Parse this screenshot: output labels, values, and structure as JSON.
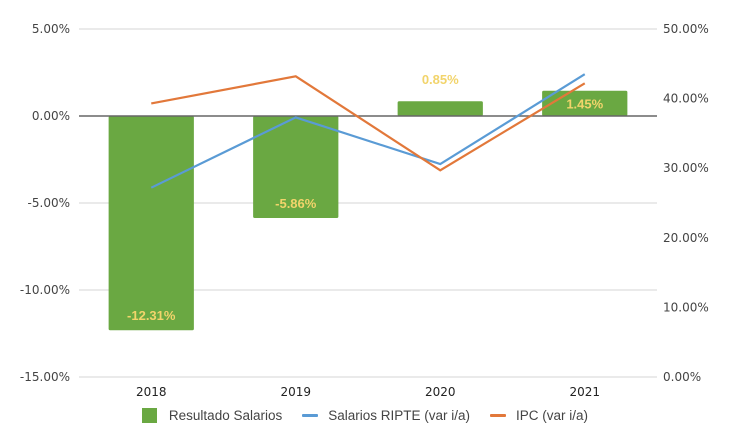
{
  "chart_data": {
    "type": "bar",
    "title": "",
    "xlabel": "",
    "categories": [
      "2018",
      "2019",
      "2020",
      "2021"
    ],
    "left_axis": {
      "ylim": [
        -15,
        5
      ],
      "ticks": [
        5,
        0,
        -5,
        -10,
        -15
      ],
      "tick_labels": [
        "5.00%",
        "0.00%",
        "-5.00%",
        "-10.00%",
        "-15.00%"
      ]
    },
    "right_axis": {
      "ylim": [
        0,
        50
      ],
      "ticks": [
        50,
        40,
        30,
        20,
        10,
        0
      ],
      "tick_labels": [
        "50.00%",
        "40.00%",
        "30.00%",
        "20.00%",
        "10.00%",
        "0.00%"
      ]
    },
    "series": [
      {
        "name": "Resultado Salarios",
        "kind": "bar",
        "axis": "left",
        "color": "#6aa842",
        "label_color": "#f2d46b",
        "values": [
          -12.31,
          -5.86,
          0.85,
          1.45
        ],
        "data_labels": [
          "-12.31%",
          "-5.86%",
          "0.85%",
          "1.45%"
        ]
      },
      {
        "name": "Salarios RIPTE (var i/a)",
        "kind": "line",
        "axis": "right",
        "color": "#5a9bd5",
        "values": [
          27.2,
          37.3,
          30.6,
          43.5
        ]
      },
      {
        "name": "IPC (var i/a)",
        "kind": "line",
        "axis": "right",
        "color": "#e2783a",
        "values": [
          39.3,
          43.2,
          29.7,
          42.2
        ]
      }
    ],
    "grid": true,
    "legend_position": "bottom"
  },
  "legend": {
    "items": [
      {
        "label": "Resultado Salarios",
        "color": "#6aa842",
        "shape": "box"
      },
      {
        "label": "Salarios RIPTE (var i/a)",
        "color": "#5a9bd5",
        "shape": "line"
      },
      {
        "label": "IPC (var i/a)",
        "color": "#e2783a",
        "shape": "line"
      }
    ]
  }
}
